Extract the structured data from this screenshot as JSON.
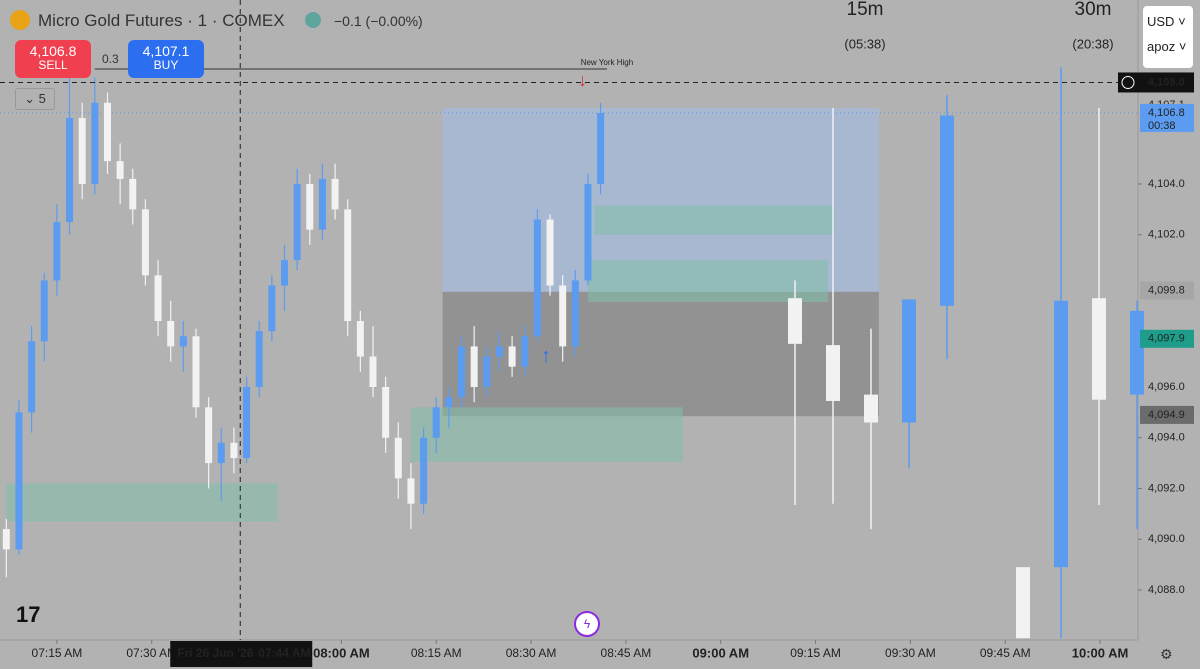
{
  "header": {
    "symbol": "Micro Gold Futures · 1 · COMEX",
    "change": "−0.1 (−0.00%)",
    "sell_price": "4,106.8",
    "sell_label": "SELL",
    "spread": "0.3",
    "buy_price": "4,107.1",
    "buy_label": "BUY",
    "indicator_count": "5",
    "currency": "USD",
    "account": "apoz"
  },
  "chart_data": {
    "type": "candlestick",
    "xlim": [
      "07:06",
      "10:06"
    ],
    "ylim": [
      4086.03,
      4111.25
    ],
    "xticks": [
      "07:15 AM",
      "07:30 AM",
      "08:00 AM",
      "08:15 AM",
      "08:30 AM",
      "08:45 AM",
      "09:00 AM",
      "09:15 AM",
      "09:30 AM",
      "09:45 AM",
      "10:00 AM"
    ],
    "yticks": [
      {
        "value": 4088,
        "label": "4,088.0"
      },
      {
        "value": 4090,
        "label": "4,090.0"
      },
      {
        "value": 4092,
        "label": "4,092.0"
      },
      {
        "value": 4094,
        "label": "4,094.0"
      },
      {
        "value": 4096,
        "label": "4,096.0"
      },
      {
        "value": 4102,
        "label": "4,102.0"
      },
      {
        "value": 4104,
        "label": "4,104.0"
      }
    ],
    "up_color": "#5b9cf0",
    "down_color": "#f2f2f2",
    "candles": [
      [
        "07:07",
        4090.4,
        4090.8,
        4088.5,
        4089.6
      ],
      [
        "07:09",
        4089.6,
        4095.5,
        4089.4,
        4095.0
      ],
      [
        "07:11",
        4095.0,
        4098.4,
        4094.2,
        4097.8
      ],
      [
        "07:13",
        4097.8,
        4100.5,
        4097.0,
        4100.2
      ],
      [
        "07:15",
        4100.2,
        4103.2,
        4099.6,
        4102.5
      ],
      [
        "07:17",
        4102.5,
        4108.4,
        4102.0,
        4106.6
      ],
      [
        "07:19",
        4106.6,
        4107.2,
        4103.4,
        4104.0
      ],
      [
        "07:21",
        4104.0,
        4108.2,
        4103.6,
        4107.2
      ],
      [
        "07:23",
        4107.2,
        4107.6,
        4104.4,
        4104.9
      ],
      [
        "07:25",
        4104.9,
        4105.6,
        4103.2,
        4104.2
      ],
      [
        "07:27",
        4104.2,
        4104.6,
        4102.4,
        4103.0
      ],
      [
        "07:29",
        4103.0,
        4103.4,
        4100.0,
        4100.4
      ],
      [
        "07:31",
        4100.4,
        4101.0,
        4098.0,
        4098.6
      ],
      [
        "07:33",
        4098.6,
        4099.4,
        4097.0,
        4097.6
      ],
      [
        "07:35",
        4097.6,
        4098.6,
        4096.6,
        4098.0
      ],
      [
        "07:37",
        4098.0,
        4098.3,
        4094.8,
        4095.2
      ],
      [
        "07:39",
        4095.2,
        4095.6,
        4092.0,
        4093.0
      ],
      [
        "07:41",
        4093.0,
        4094.4,
        4091.5,
        4093.8
      ],
      [
        "07:43",
        4093.8,
        4094.4,
        4092.6,
        4093.2
      ],
      [
        "07:45",
        4093.2,
        4096.4,
        4093.0,
        4096.0
      ],
      [
        "07:47",
        4096.0,
        4098.6,
        4095.6,
        4098.2
      ],
      [
        "07:49",
        4098.2,
        4100.4,
        4097.8,
        4100.0
      ],
      [
        "07:51",
        4100.0,
        4101.6,
        4099.0,
        4101.0
      ],
      [
        "07:53",
        4101.0,
        4104.6,
        4100.6,
        4104.0
      ],
      [
        "07:55",
        4104.0,
        4104.4,
        4101.6,
        4102.2
      ],
      [
        "07:57",
        4102.2,
        4104.8,
        4101.8,
        4104.2
      ],
      [
        "07:59",
        4104.2,
        4104.8,
        4102.6,
        4103.0
      ],
      [
        "08:01",
        4103.0,
        4103.4,
        4098.0,
        4098.6
      ],
      [
        "08:03",
        4098.6,
        4099.0,
        4096.6,
        4097.2
      ],
      [
        "08:05",
        4097.2,
        4098.4,
        4095.6,
        4096.0
      ],
      [
        "08:07",
        4096.0,
        4096.4,
        4093.4,
        4094.0
      ],
      [
        "08:09",
        4094.0,
        4094.6,
        4091.6,
        4092.4
      ],
      [
        "08:11",
        4092.4,
        4093.0,
        4090.4,
        4091.4
      ],
      [
        "08:13",
        4091.4,
        4094.4,
        4091.0,
        4094.0
      ],
      [
        "08:15",
        4094.0,
        4095.6,
        4093.4,
        4095.2
      ],
      [
        "08:17",
        4095.2,
        4096.0,
        4094.4,
        4095.6
      ],
      [
        "08:19",
        4095.6,
        4098.0,
        4095.2,
        4097.6
      ],
      [
        "08:21",
        4097.6,
        4098.4,
        4095.4,
        4096.0
      ],
      [
        "08:23",
        4096.0,
        4097.6,
        4095.6,
        4097.2
      ],
      [
        "08:25",
        4097.2,
        4098.2,
        4096.6,
        4097.6
      ],
      [
        "08:27",
        4097.6,
        4098.0,
        4096.4,
        4096.8
      ],
      [
        "08:29",
        4096.8,
        4098.4,
        4096.4,
        4098.0
      ],
      [
        "08:31",
        4098.0,
        4103.0,
        4097.8,
        4102.6
      ],
      [
        "08:33",
        4102.6,
        4102.8,
        4099.6,
        4100.0
      ],
      [
        "08:35",
        4100.0,
        4100.4,
        4097.0,
        4097.6
      ],
      [
        "08:37",
        4097.6,
        4100.6,
        4097.2,
        4100.2
      ],
      [
        "08:39",
        4100.2,
        4104.4,
        4100.0,
        4104.0
      ],
      [
        "08:41",
        4104.0,
        4107.2,
        4103.6,
        4106.8
      ]
    ],
    "htf": [
      {
        "label": "15m",
        "countdown": "(05:38)",
        "candles": [
          [
            4099.5,
            4100.2,
            4091.35,
            4097.7
          ],
          [
            4097.65,
            4107.0,
            4091.4,
            4095.45
          ],
          [
            4095.7,
            4098.3,
            4090.4,
            4094.6
          ],
          [
            4094.6,
            4099.45,
            4092.8,
            4099.45
          ],
          [
            4099.2,
            4107.5,
            4097.1,
            4106.7
          ]
        ]
      },
      {
        "label": "30m",
        "countdown": "(20:38)",
        "candles": [
          [
            4088.9,
            4088.9,
            4086.1,
            4086.1
          ],
          [
            4088.9,
            4108.6,
            4086.1,
            4099.4
          ],
          [
            4099.5,
            4107.0,
            4091.35,
            4095.5
          ],
          [
            4095.7,
            4099.4,
            4090.4,
            4099.0
          ]
        ]
      }
    ],
    "zones": [
      {
        "from": "08:16",
        "to": "09:25",
        "top": 4107.0,
        "bottom": 4099.75,
        "color": "rgba(160,190,235,0.55)"
      },
      {
        "from": "08:16",
        "to": "09:25",
        "top": 4099.75,
        "bottom": 4094.85,
        "color": "rgba(120,120,120,0.55)"
      },
      {
        "from": "07:07",
        "to": "07:50",
        "top": 4092.2,
        "bottom": 4090.7,
        "color": "rgba(130,190,170,0.55)"
      },
      {
        "from": "08:11",
        "to": "08:54",
        "top": 4095.2,
        "bottom": 4093.05,
        "color": "rgba(130,190,170,0.55)"
      },
      {
        "from": "08:40",
        "to": "09:18",
        "top": 4103.15,
        "bottom": 4102.0,
        "color": "rgba(130,190,170,0.6)"
      },
      {
        "from": "08:39",
        "to": "09:17",
        "top": 4101.0,
        "bottom": 4099.35,
        "color": "rgba(130,190,170,0.6)"
      }
    ],
    "levels": [
      {
        "label": "New York High",
        "value": 4108.53,
        "from": "07:21",
        "to": "08:42"
      }
    ],
    "last_price": 4106.8,
    "crosshair": {
      "value": 4108,
      "label": "4,108.0",
      "date": "Fri 26 Jun '26",
      "time": "07:44 AM"
    },
    "price_labels": [
      {
        "value": 4107.1,
        "label": "4,107.1",
        "bg": "none",
        "fg": "#555"
      },
      {
        "value": 4106.8,
        "label": "4,106.8",
        "sub": "00:38",
        "bg": "#5b9cf0",
        "fg": "#fff"
      },
      {
        "value": 4099.8,
        "label": "4,099.8",
        "bg": "#a6a6a6",
        "fg": "#111"
      },
      {
        "value": 4097.9,
        "label": "4,097.9",
        "bg": "#1e9e8a",
        "fg": "#fff"
      },
      {
        "value": 4094.9,
        "label": "4,094.9",
        "bg": "#6b6b6b",
        "fg": "#fff"
      }
    ]
  }
}
